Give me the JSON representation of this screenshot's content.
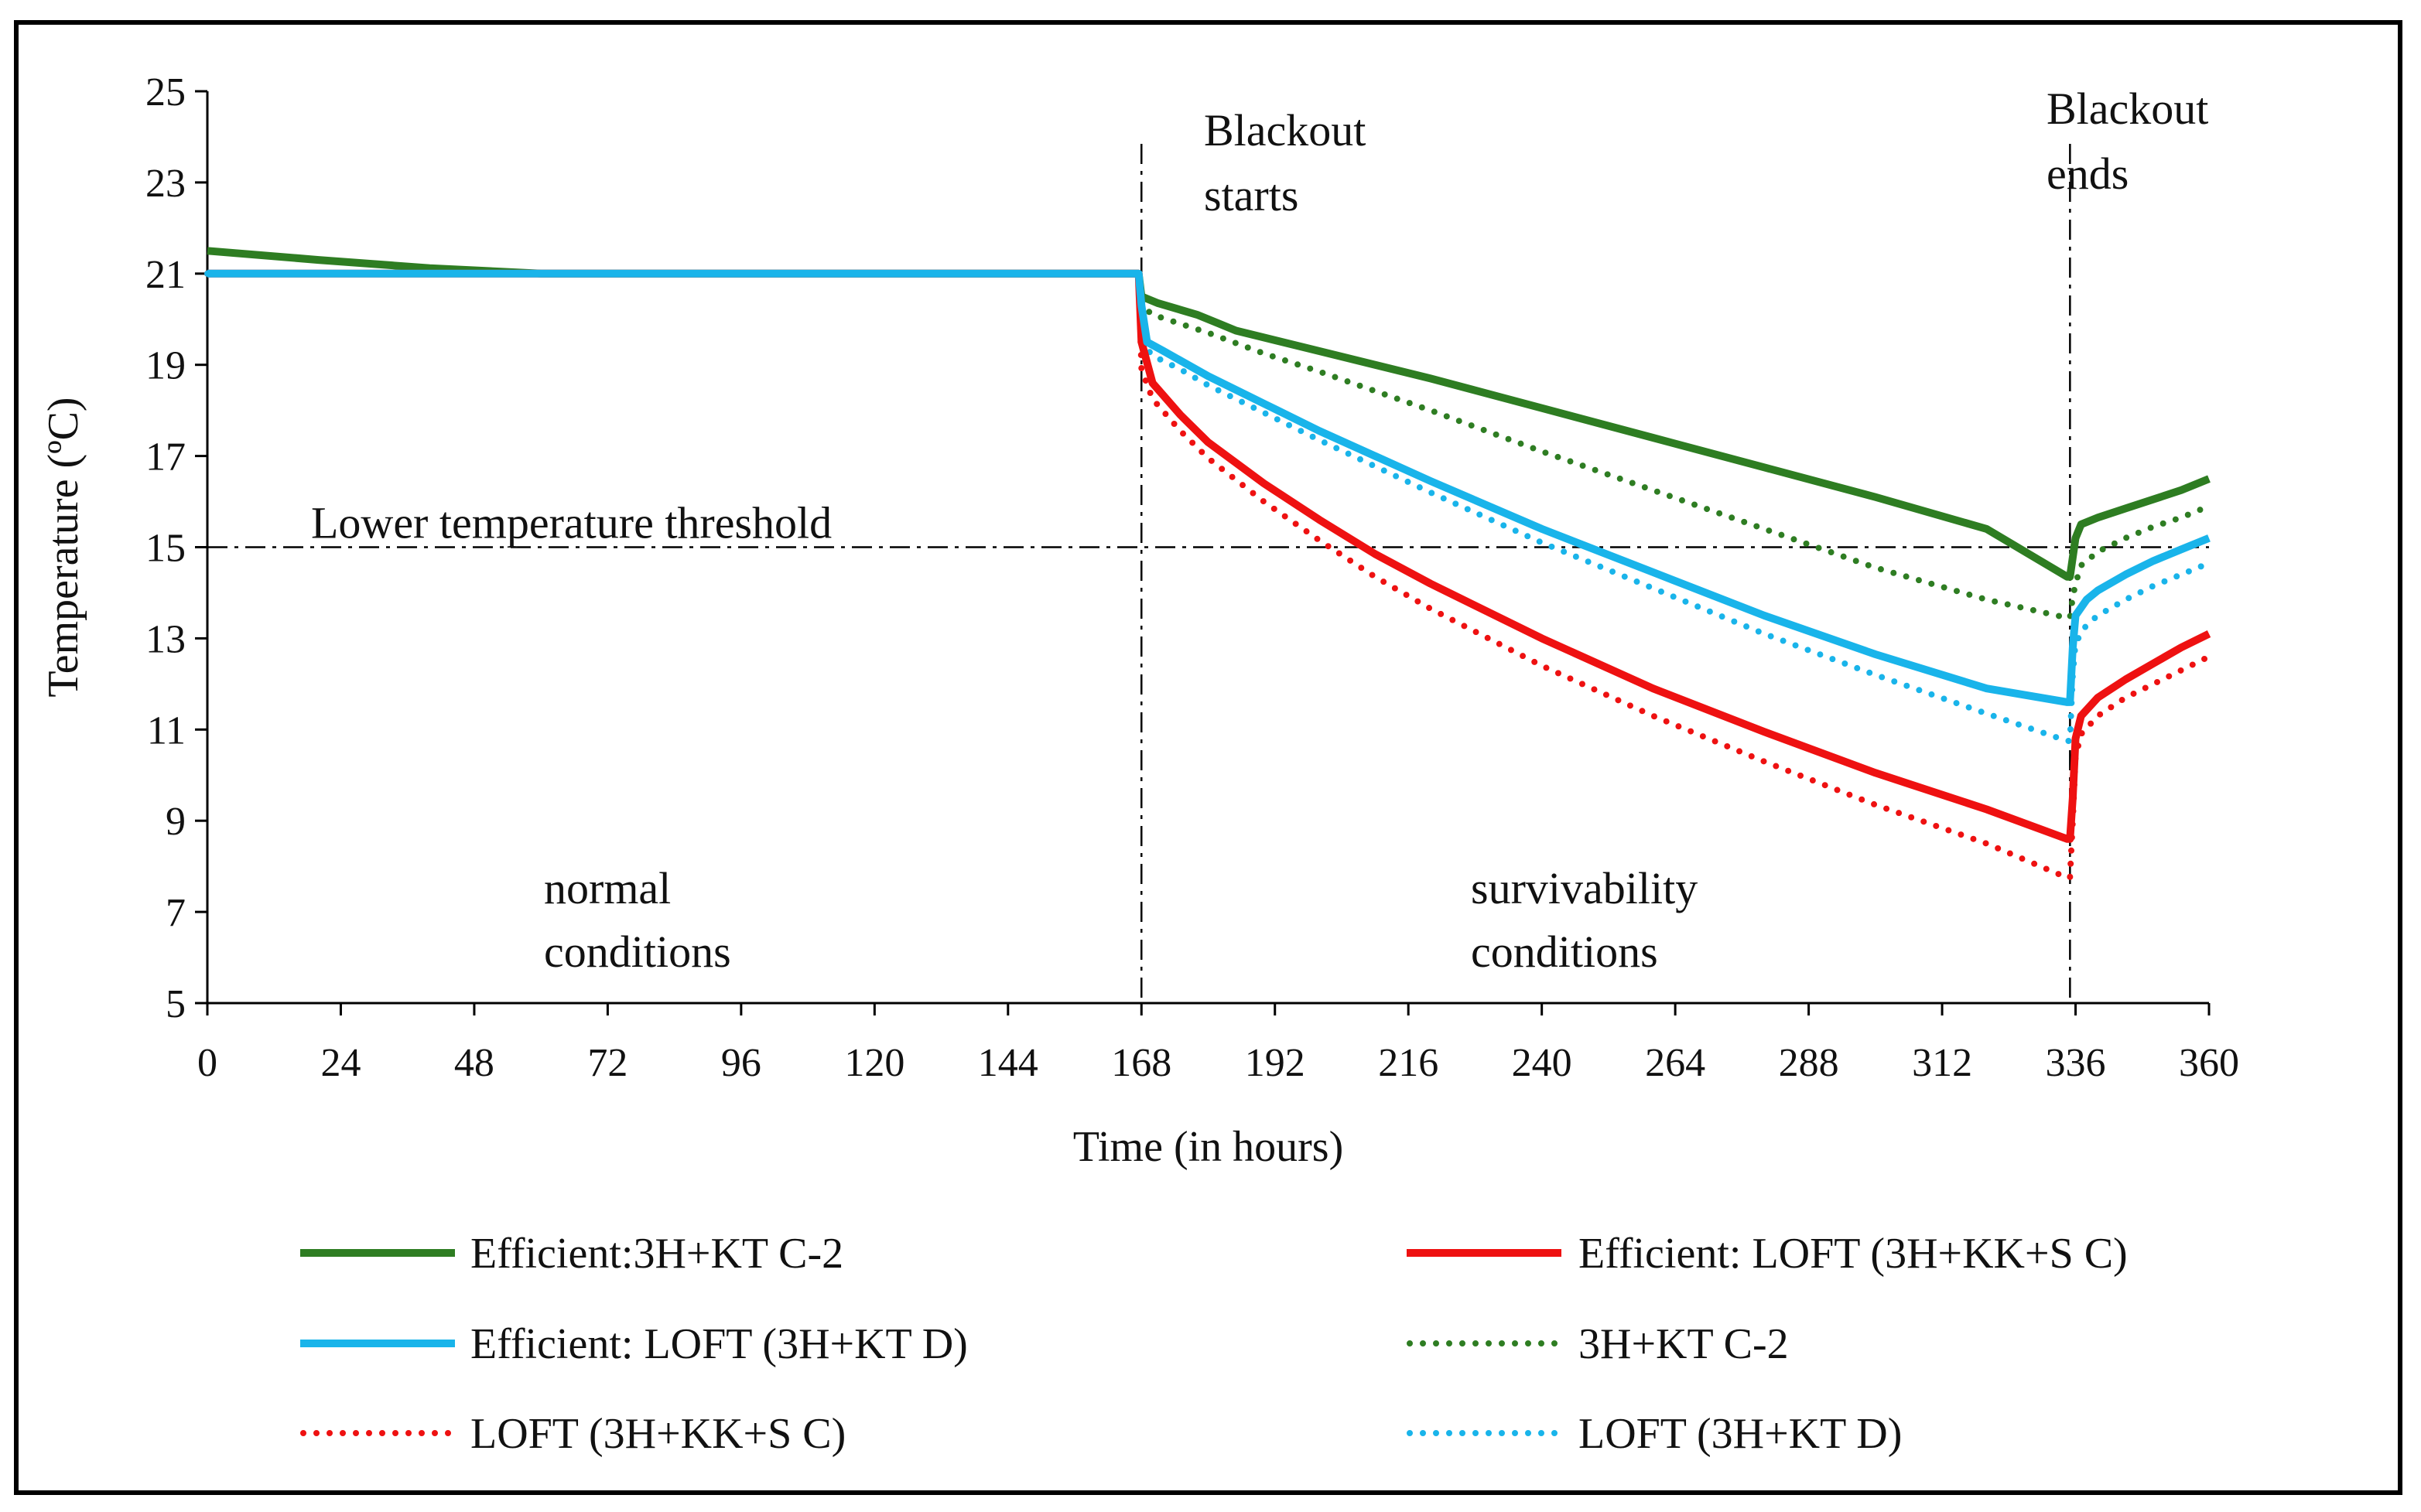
{
  "chart_data": {
    "type": "line",
    "xlabel": "Time (in hours)",
    "ylabel": "Temperature (ºC)",
    "xlim": [
      0,
      360
    ],
    "ylim": [
      5,
      25
    ],
    "xticks": [
      0,
      24,
      48,
      72,
      96,
      120,
      144,
      168,
      192,
      216,
      240,
      264,
      288,
      312,
      336,
      360
    ],
    "yticks": [
      5,
      7,
      9,
      11,
      13,
      15,
      17,
      19,
      21,
      23,
      25
    ],
    "grid": false,
    "legend_position": "bottom",
    "threshold": {
      "y": 15,
      "label": "Lower temperature threshold"
    },
    "vlines": [
      {
        "x": 168,
        "label_line1": "Blackout",
        "label_line2": "starts"
      },
      {
        "x": 335,
        "label_line1": "Blackout",
        "label_line2": "ends"
      }
    ],
    "region_labels": [
      {
        "x": 80,
        "y": 6.9,
        "line1": "normal",
        "line2": "conditions"
      },
      {
        "x": 247,
        "y": 6.9,
        "line1": "survivability",
        "line2": "conditions"
      }
    ],
    "series": [
      {
        "name": "Efficient:3H+KT C-2",
        "color": "#2e7d22",
        "style": "solid",
        "x": [
          0,
          20,
          40,
          60,
          80,
          120,
          167.5,
          168,
          171,
          178,
          182,
          185,
          200,
          220,
          240,
          260,
          280,
          300,
          320,
          334.5,
          335,
          336,
          337,
          340,
          345,
          350,
          355,
          360
        ],
        "y": [
          21.5,
          21.3,
          21.12,
          21.0,
          21.0,
          21.0,
          21.0,
          20.5,
          20.35,
          20.1,
          19.9,
          19.75,
          19.3,
          18.7,
          18.05,
          17.4,
          16.75,
          16.1,
          15.4,
          14.35,
          14.35,
          15.2,
          15.5,
          15.65,
          15.85,
          16.05,
          16.25,
          16.5
        ]
      },
      {
        "name": "Efficient: LOFT (3H+KK+S C)",
        "color": "#ee1111",
        "style": "solid",
        "x": [
          0,
          80,
          167.5,
          168,
          170,
          175,
          180,
          190,
          200,
          210,
          220,
          240,
          260,
          280,
          300,
          320,
          334.5,
          335,
          335.5,
          336,
          337,
          340,
          345,
          350,
          355,
          360
        ],
        "y": [
          21.0,
          21.0,
          21.0,
          19.5,
          18.6,
          17.9,
          17.3,
          16.4,
          15.6,
          14.85,
          14.2,
          13.0,
          11.9,
          10.95,
          10.05,
          9.25,
          8.6,
          8.6,
          9.5,
          10.8,
          11.3,
          11.7,
          12.1,
          12.45,
          12.8,
          13.1
        ]
      },
      {
        "name": "Efficient: LOFT (3H+KT D)",
        "color": "#19b4ea",
        "style": "solid",
        "x": [
          0,
          80,
          167.5,
          168,
          169,
          172,
          180,
          190,
          200,
          220,
          240,
          260,
          280,
          300,
          320,
          334.5,
          335,
          335.5,
          336,
          338,
          340,
          345,
          350,
          355,
          360
        ],
        "y": [
          21.0,
          21.0,
          21.0,
          20.3,
          19.5,
          19.3,
          18.75,
          18.15,
          17.55,
          16.45,
          15.4,
          14.45,
          13.5,
          12.65,
          11.9,
          11.6,
          11.6,
          12.8,
          13.5,
          13.85,
          14.05,
          14.4,
          14.7,
          14.95,
          15.2
        ]
      },
      {
        "name": "3H+KT C-2",
        "color": "#2e7d22",
        "style": "dotted",
        "x": [
          0,
          80,
          167.5,
          168,
          170,
          180,
          190,
          200,
          220,
          240,
          260,
          280,
          300,
          320,
          334.5,
          335,
          335.5,
          336,
          337,
          340,
          345,
          350,
          355,
          360
        ],
        "y": [
          21.0,
          21.0,
          21.0,
          20.3,
          20.1,
          19.7,
          19.25,
          18.85,
          18.0,
          17.1,
          16.25,
          15.4,
          14.55,
          13.85,
          13.45,
          13.45,
          13.9,
          14.2,
          14.6,
          14.9,
          15.2,
          15.45,
          15.65,
          15.9
        ]
      },
      {
        "name": "LOFT (3H+KK+S C)",
        "color": "#ee1111",
        "style": "dotted",
        "x": [
          0,
          80,
          167.5,
          168,
          170,
          175,
          180,
          190,
          200,
          210,
          220,
          240,
          260,
          280,
          300,
          320,
          334.5,
          335,
          335.5,
          336,
          337,
          340,
          345,
          350,
          355,
          360
        ],
        "y": [
          21.0,
          21.0,
          21.0,
          18.9,
          18.25,
          17.55,
          16.95,
          16.0,
          15.15,
          14.35,
          13.65,
          12.4,
          11.3,
          10.3,
          9.35,
          8.5,
          7.75,
          7.75,
          9.0,
          10.4,
          10.9,
          11.3,
          11.7,
          12.0,
          12.3,
          12.6
        ]
      },
      {
        "name": "LOFT (3H+KT D)",
        "color": "#19b4ea",
        "style": "dotted",
        "x": [
          0,
          80,
          167.5,
          168,
          170,
          175,
          180,
          190,
          200,
          220,
          240,
          260,
          280,
          300,
          320,
          334.5,
          335,
          335.5,
          336,
          338,
          340,
          345,
          350,
          355,
          360
        ],
        "y": [
          21.0,
          21.0,
          21.0,
          19.5,
          19.2,
          18.9,
          18.55,
          17.95,
          17.35,
          16.2,
          15.1,
          14.1,
          13.1,
          12.2,
          11.35,
          10.75,
          10.75,
          12.2,
          12.9,
          13.3,
          13.5,
          13.85,
          14.15,
          14.4,
          14.65
        ]
      }
    ]
  }
}
